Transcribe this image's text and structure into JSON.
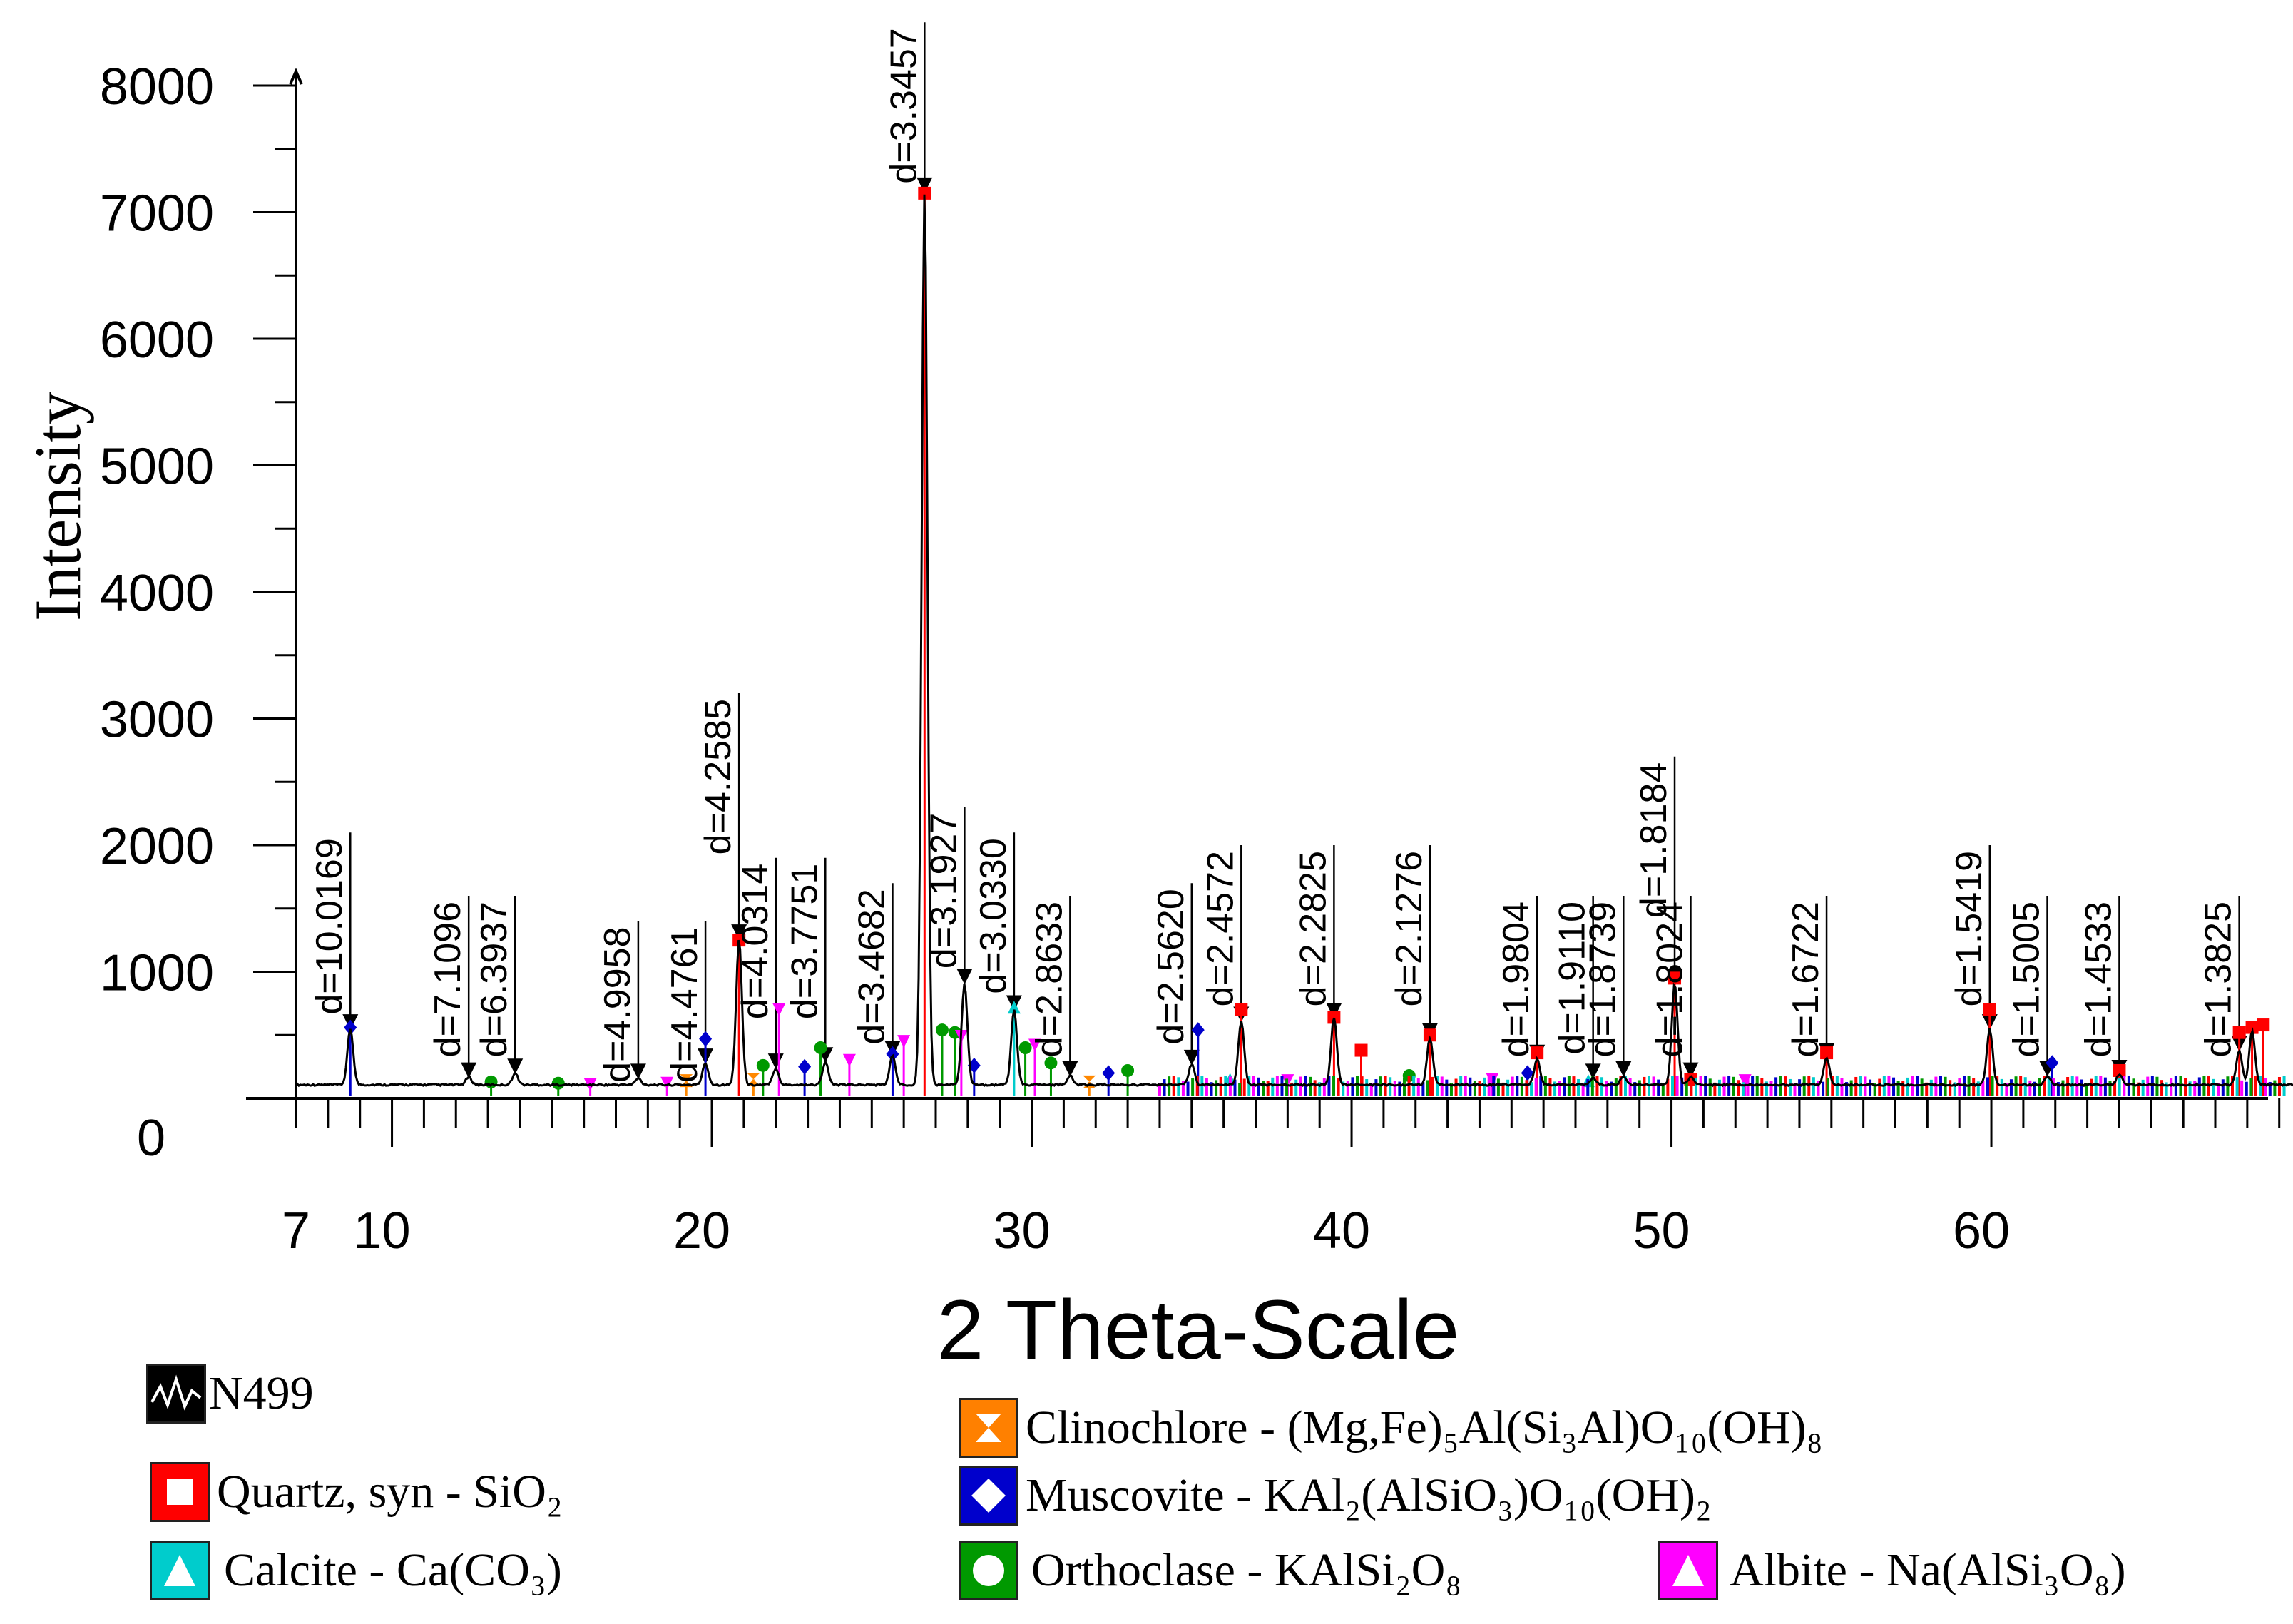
{
  "chart_data": {
    "type": "line",
    "title": "",
    "xlabel": "2 Theta-Scale",
    "ylabel": "Intensity",
    "xlim": [
      7,
      69.5
    ],
    "ylim": [
      0,
      8000
    ],
    "x_tick_labels": [
      7,
      10,
      20,
      30,
      40,
      50,
      60
    ],
    "y_tick_labels": [
      0,
      1000,
      2000,
      3000,
      4000,
      5000,
      6000,
      7000,
      8000
    ],
    "series": [
      {
        "name": "N499",
        "color": "#000000",
        "baseline": 100,
        "peaks": [
          {
            "x": 8.7,
            "y": 540
          },
          {
            "x": 12.4,
            "y": 160
          },
          {
            "x": 13.85,
            "y": 190
          },
          {
            "x": 17.7,
            "y": 150
          },
          {
            "x": 19.8,
            "y": 270
          },
          {
            "x": 20.85,
            "y": 1250
          },
          {
            "x": 22.0,
            "y": 230
          },
          {
            "x": 23.55,
            "y": 280
          },
          {
            "x": 25.65,
            "y": 330
          },
          {
            "x": 26.65,
            "y": 7150
          },
          {
            "x": 27.9,
            "y": 900
          },
          {
            "x": 29.45,
            "y": 690
          },
          {
            "x": 31.2,
            "y": 170
          },
          {
            "x": 35.0,
            "y": 260
          },
          {
            "x": 36.55,
            "y": 600
          },
          {
            "x": 39.45,
            "y": 630
          },
          {
            "x": 42.45,
            "y": 470
          },
          {
            "x": 45.8,
            "y": 300
          },
          {
            "x": 47.55,
            "y": 150
          },
          {
            "x": 48.5,
            "y": 170
          },
          {
            "x": 50.1,
            "y": 900
          },
          {
            "x": 50.6,
            "y": 160
          },
          {
            "x": 54.85,
            "y": 310
          },
          {
            "x": 59.95,
            "y": 540
          },
          {
            "x": 61.75,
            "y": 170
          },
          {
            "x": 64.0,
            "y": 180
          },
          {
            "x": 67.75,
            "y": 370
          },
          {
            "x": 68.15,
            "y": 520
          }
        ]
      }
    ],
    "d_labels": [
      {
        "x": 8.7,
        "text": "d=10.0169",
        "line_top": 2100
      },
      {
        "x": 12.4,
        "text": "d=7.1096",
        "line_top": 1600
      },
      {
        "x": 13.85,
        "text": "d=6.3937",
        "line_top": 1600
      },
      {
        "x": 17.7,
        "text": "d=4.9958",
        "line_top": 1400
      },
      {
        "x": 19.8,
        "text": "d=4.4761",
        "line_top": 1400
      },
      {
        "x": 20.85,
        "text": "d=4.2585",
        "line_top": 3200
      },
      {
        "x": 22.0,
        "text": "d=4.0314",
        "line_top": 1900
      },
      {
        "x": 23.55,
        "text": "d=3.7751",
        "line_top": 1900
      },
      {
        "x": 25.65,
        "text": "d=3.4682",
        "line_top": 1700
      },
      {
        "x": 26.65,
        "text": "d=3.3457",
        "line_top": 8500
      },
      {
        "x": 27.9,
        "text": "d=3.1927",
        "line_top": 2300
      },
      {
        "x": 29.45,
        "text": "d=3.0330",
        "line_top": 2100
      },
      {
        "x": 31.2,
        "text": "d=2.8633",
        "line_top": 1600
      },
      {
        "x": 35.0,
        "text": "d=2.5620",
        "line_top": 1700
      },
      {
        "x": 36.55,
        "text": "d=2.4572",
        "line_top": 2000
      },
      {
        "x": 39.45,
        "text": "d=2.2825",
        "line_top": 2000
      },
      {
        "x": 42.45,
        "text": "d=2.1276",
        "line_top": 2000
      },
      {
        "x": 45.8,
        "text": "d=1.9804",
        "line_top": 1600
      },
      {
        "x": 47.55,
        "text": "d=1.9110",
        "line_top": 1600
      },
      {
        "x": 48.5,
        "text": "d=1.8739",
        "line_top": 1600
      },
      {
        "x": 50.1,
        "text": "d=1.8184",
        "line_top": 2700
      },
      {
        "x": 50.6,
        "text": "d=1.8024",
        "line_top": 1600
      },
      {
        "x": 54.85,
        "text": "d=1.6722",
        "line_top": 1600
      },
      {
        "x": 59.95,
        "text": "d=1.5419",
        "line_top": 2000
      },
      {
        "x": 61.75,
        "text": "d=1.5005",
        "line_top": 1600
      },
      {
        "x": 64.0,
        "text": "d=1.4533",
        "line_top": 1600
      },
      {
        "x": 67.75,
        "text": "d=1.3825",
        "line_top": 1600
      }
    ],
    "phase_markers": {
      "quartz": {
        "color": "#ff0000",
        "shape": "square",
        "points": [
          [
            20.85,
            1250
          ],
          [
            26.65,
            7150
          ],
          [
            36.55,
            700
          ],
          [
            39.45,
            640
          ],
          [
            40.3,
            380
          ],
          [
            42.45,
            500
          ],
          [
            45.8,
            360
          ],
          [
            50.1,
            950
          ],
          [
            50.6,
            150
          ],
          [
            54.85,
            360
          ],
          [
            59.95,
            700
          ],
          [
            64.0,
            220
          ],
          [
            67.75,
            520
          ],
          [
            68.15,
            560
          ],
          [
            68.5,
            580
          ]
        ]
      },
      "muscovite": {
        "color": "#0000cc",
        "shape": "diamond",
        "points": [
          [
            8.7,
            560
          ],
          [
            19.8,
            470
          ],
          [
            22.9,
            250
          ],
          [
            25.65,
            350
          ],
          [
            28.2,
            260
          ],
          [
            32.4,
            200
          ],
          [
            35.2,
            540
          ],
          [
            45.5,
            200
          ],
          [
            61.9,
            280
          ]
        ]
      },
      "orthoclase": {
        "color": "#009900",
        "shape": "circle",
        "points": [
          [
            13.1,
            130
          ],
          [
            15.2,
            120
          ],
          [
            21.6,
            260
          ],
          [
            23.4,
            400
          ],
          [
            27.2,
            540
          ],
          [
            27.6,
            520
          ],
          [
            29.8,
            400
          ],
          [
            30.6,
            280
          ],
          [
            33.0,
            220
          ],
          [
            41.8,
            180
          ]
        ]
      },
      "calcite": {
        "color": "#00cccc",
        "shape": "triangle",
        "points": [
          [
            29.45,
            720
          ],
          [
            36.2,
            150
          ],
          [
            47.4,
            140
          ]
        ]
      },
      "albite": {
        "color": "#ff00ff",
        "shape": "triangle-down",
        "points": [
          [
            16.2,
            110
          ],
          [
            18.6,
            120
          ],
          [
            22.1,
            700
          ],
          [
            24.3,
            300
          ],
          [
            26.0,
            450
          ],
          [
            27.8,
            490
          ],
          [
            30.1,
            420
          ],
          [
            38.0,
            140
          ],
          [
            44.4,
            150
          ],
          [
            52.3,
            140
          ]
        ]
      },
      "clinochlore": {
        "color": "#ff8800",
        "shape": "hourglass",
        "points": [
          [
            19.2,
            140
          ],
          [
            21.3,
            150
          ],
          [
            31.8,
            130
          ]
        ]
      }
    },
    "legend_position": "bottom",
    "grid": false
  },
  "legend": [
    {
      "key": "n499",
      "label": "N499",
      "swatch_bg": "#000000",
      "shape": "zigzag"
    },
    {
      "key": "clinochlore",
      "label": "Clinochlore - (Mg,Fe)₅Al(Si₃Al)O₁₀(OH)₈",
      "swatch_bg": "#ff8000",
      "shape": "hourglass"
    },
    {
      "key": "quartz",
      "label": "Quartz, syn - SiO₂",
      "swatch_bg": "#ff0000",
      "shape": "square"
    },
    {
      "key": "muscovite",
      "label": "Muscovite - KAl₂(AlSiO₃)O₁₀(OH)₂",
      "swatch_bg": "#0000cc",
      "shape": "diamond"
    },
    {
      "key": "calcite",
      "label": "Calcite - Ca(CO₃)",
      "swatch_bg": "#00cccc",
      "shape": "triangle"
    },
    {
      "key": "orthoclase",
      "label": "Orthoclase - KAlSi₂O₈",
      "swatch_bg": "#009900",
      "shape": "circle"
    },
    {
      "key": "albite",
      "label": "Albite - Na(AlSi₃O₈)",
      "swatch_bg": "#ff00ff",
      "shape": "triangle"
    }
  ]
}
